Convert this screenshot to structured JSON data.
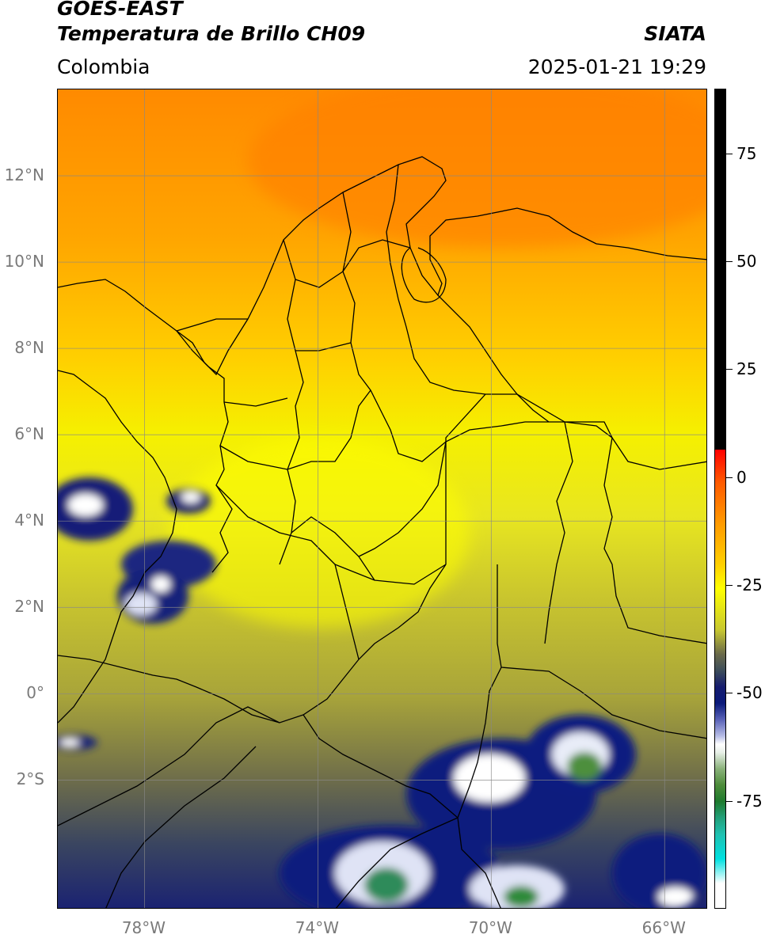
{
  "header": {
    "satellite": "GOES-EAST",
    "product": "Temperatura de Brillo CH09",
    "region": "Colombia",
    "organization": "SIATA",
    "datetime": "2025-01-21 19:29"
  },
  "map": {
    "lon_range": [
      -80,
      -65
    ],
    "lat_range": [
      -5,
      14
    ],
    "lat_ticks": [
      {
        "value": 12,
        "label": "12°N"
      },
      {
        "value": 10,
        "label": "10°N"
      },
      {
        "value": 8,
        "label": "8°N"
      },
      {
        "value": 6,
        "label": "6°N"
      },
      {
        "value": 4,
        "label": "4°N"
      },
      {
        "value": 2,
        "label": "2°N"
      },
      {
        "value": 0,
        "label": "0°"
      },
      {
        "value": -2,
        "label": "2°S"
      }
    ],
    "lon_ticks": [
      {
        "value": -78,
        "label": "78°W"
      },
      {
        "value": -74,
        "label": "74°W"
      },
      {
        "value": -70,
        "label": "70°W"
      },
      {
        "value": -66,
        "label": "66°W"
      }
    ],
    "grid": true
  },
  "colorbar": {
    "range": [
      -100,
      90
    ],
    "ticks": [
      {
        "value": 75,
        "label": "75"
      },
      {
        "value": 50,
        "label": "50"
      },
      {
        "value": 25,
        "label": "25"
      },
      {
        "value": 0,
        "label": "0"
      },
      {
        "value": -25,
        "label": "-25"
      },
      {
        "value": -50,
        "label": "-50"
      },
      {
        "value": -75,
        "label": "-75"
      }
    ]
  },
  "colors": {
    "cold_cloud": "#0b1a7a",
    "warm_surface": "#ff9a00",
    "mid": "#ffff00",
    "deep_convection": "#2e8b3a"
  }
}
